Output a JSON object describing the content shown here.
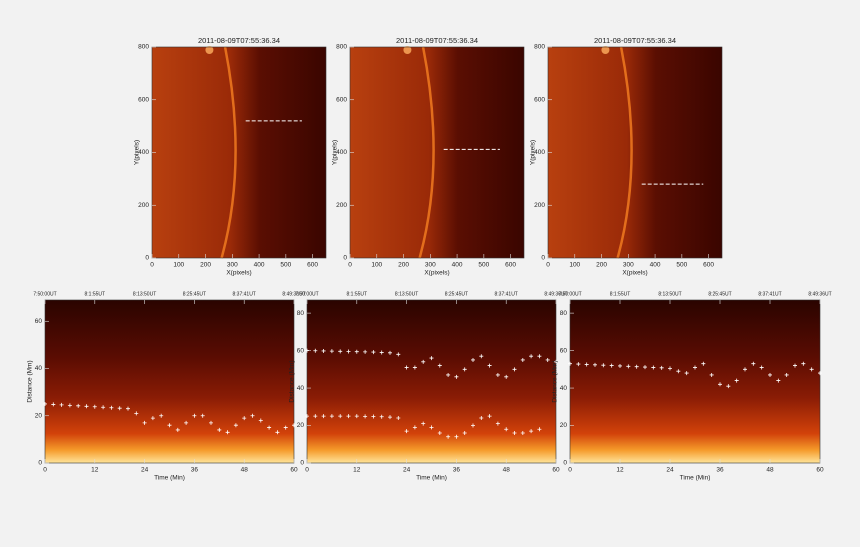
{
  "chart_data": [
    {
      "type": "line",
      "title": "2011-08-09T07:55:36.34",
      "xlabel": "X(pixels)",
      "ylabel": "Y(pixels)",
      "xlim": [
        0,
        650
      ],
      "ylim": [
        0,
        800
      ],
      "xticks": [
        0,
        100,
        200,
        300,
        400,
        500,
        600
      ],
      "yticks": [
        0,
        200,
        400,
        600,
        800
      ],
      "x": [
        350,
        560
      ],
      "series": [
        {
          "color": "#ffffff",
          "linestyle": "dashed",
          "values": [
            520,
            520
          ]
        }
      ]
    },
    {
      "type": "line",
      "title": "2011-08-09T07:55:36.34",
      "xlabel": "X(pixels)",
      "ylabel": "Y(pixels)",
      "xlim": [
        0,
        650
      ],
      "ylim": [
        0,
        800
      ],
      "xticks": [
        0,
        100,
        200,
        300,
        400,
        500,
        600
      ],
      "yticks": [
        0,
        200,
        400,
        600,
        800
      ],
      "x": [
        350,
        560
      ],
      "series": [
        {
          "color": "#ffffff",
          "linestyle": "dashed",
          "values": [
            412,
            412
          ]
        }
      ]
    },
    {
      "type": "line",
      "title": "2011-08-09T07:55:36.34",
      "xlabel": "X(pixels)",
      "ylabel": "Y(pixels)",
      "xlim": [
        0,
        650
      ],
      "ylim": [
        0,
        800
      ],
      "xticks": [
        0,
        100,
        200,
        300,
        400,
        500,
        600
      ],
      "yticks": [
        0,
        200,
        400,
        600,
        800
      ],
      "x": [
        350,
        580
      ],
      "series": [
        {
          "color": "#ffffff",
          "linestyle": "dashed",
          "values": [
            280,
            280
          ]
        }
      ]
    },
    {
      "type": "scatter",
      "xlabel": "Time (Min)",
      "ylabel": "Distance (Mm)",
      "xlim": [
        0,
        60
      ],
      "ylim": [
        0,
        69
      ],
      "xticks": [
        0,
        12,
        24,
        36,
        48,
        60
      ],
      "yticks": [
        0,
        20,
        40,
        60
      ],
      "x2ticks": [
        {
          "value": 0,
          "label": "7:50:00UT"
        },
        {
          "value": 12,
          "label": "8:1:55UT"
        },
        {
          "value": 24,
          "label": "8:13:50UT"
        },
        {
          "value": 36,
          "label": "8:25:45UT"
        },
        {
          "value": 48,
          "label": "8:37:41UT"
        },
        {
          "value": 60,
          "label": "8:49:36UT"
        }
      ],
      "x": [
        0,
        2,
        4,
        6,
        8,
        10,
        12,
        14,
        16,
        18,
        20,
        22,
        24,
        26,
        28,
        30,
        32,
        34,
        36,
        38,
        40,
        42,
        44,
        46,
        48,
        50,
        52,
        54,
        56,
        58,
        60
      ],
      "series": [
        {
          "color": "#ffffff",
          "marker": "+",
          "values": [
            25,
            24.8,
            24.6,
            24.4,
            24.2,
            24,
            23.8,
            23.6,
            23.4,
            23.2,
            23,
            21,
            17,
            19,
            20,
            16,
            14,
            17,
            20,
            20,
            17,
            14,
            13,
            16,
            19,
            20,
            18,
            15,
            13,
            15,
            16
          ]
        }
      ]
    },
    {
      "type": "scatter",
      "xlabel": "Time (Min)",
      "ylabel": "Distance (Mm)",
      "xlim": [
        0,
        60
      ],
      "ylim": [
        0,
        87
      ],
      "xticks": [
        0,
        12,
        24,
        36,
        48,
        60
      ],
      "yticks": [
        0,
        20,
        40,
        60,
        80
      ],
      "x2ticks": [
        {
          "value": 0,
          "label": "7:50:00UT"
        },
        {
          "value": 12,
          "label": "8:1:55UT"
        },
        {
          "value": 24,
          "label": "8:13:50UT"
        },
        {
          "value": 36,
          "label": "8:25:45UT"
        },
        {
          "value": 48,
          "label": "8:37:41UT"
        },
        {
          "value": 60,
          "label": "8:49:36UT"
        }
      ],
      "x": [
        0,
        2,
        4,
        6,
        8,
        10,
        12,
        14,
        16,
        18,
        20,
        22,
        24,
        26,
        28,
        30,
        32,
        34,
        36,
        38,
        40,
        42,
        44,
        46,
        48,
        50,
        52,
        54,
        56,
        58,
        60
      ],
      "series": [
        {
          "color": "#ffffff",
          "marker": "+",
          "values": [
            60,
            59.9,
            59.8,
            59.7,
            59.6,
            59.5,
            59.4,
            59.3,
            59.2,
            59,
            58.8,
            58,
            51,
            51,
            54,
            56,
            52,
            47,
            46,
            50,
            55,
            57,
            52,
            47,
            46,
            50,
            55,
            57,
            57,
            55,
            54
          ]
        },
        {
          "color": "#ffffff",
          "marker": "+",
          "values": [
            25,
            25,
            25,
            25,
            25,
            25,
            25,
            24.9,
            24.8,
            24.7,
            24.5,
            24,
            17,
            19,
            21,
            19,
            16,
            14,
            14,
            16,
            20,
            24,
            25,
            21,
            18,
            16,
            16,
            17,
            18,
            null,
            null
          ]
        }
      ]
    },
    {
      "type": "scatter",
      "xlabel": "Time (Min)",
      "ylabel": "Distance (Mm)",
      "xlim": [
        0,
        60
      ],
      "ylim": [
        0,
        87
      ],
      "xticks": [
        0,
        12,
        24,
        36,
        48,
        60
      ],
      "yticks": [
        0,
        20,
        40,
        60,
        80
      ],
      "x2ticks": [
        {
          "value": 0,
          "label": "7:50:00UT"
        },
        {
          "value": 12,
          "label": "8:1:55UT"
        },
        {
          "value": 24,
          "label": "8:13:50UT"
        },
        {
          "value": 36,
          "label": "8:25:45UT"
        },
        {
          "value": 48,
          "label": "8:37:41UT"
        },
        {
          "value": 60,
          "label": "8:49:36UT"
        }
      ],
      "x": [
        0,
        2,
        4,
        6,
        8,
        10,
        12,
        14,
        16,
        18,
        20,
        22,
        24,
        26,
        28,
        30,
        32,
        34,
        36,
        38,
        40,
        42,
        44,
        46,
        48,
        50,
        52,
        54,
        56,
        58,
        60
      ],
      "series": [
        {
          "color": "#ffffff",
          "marker": "+",
          "values": [
            53,
            52.8,
            52.6,
            52.4,
            52.2,
            52,
            51.8,
            51.6,
            51.4,
            51.2,
            51,
            50.8,
            50.5,
            49,
            48,
            51,
            53,
            47,
            42,
            41,
            44,
            50,
            53,
            51,
            47,
            44,
            47,
            52,
            53,
            50,
            48
          ]
        }
      ]
    }
  ]
}
